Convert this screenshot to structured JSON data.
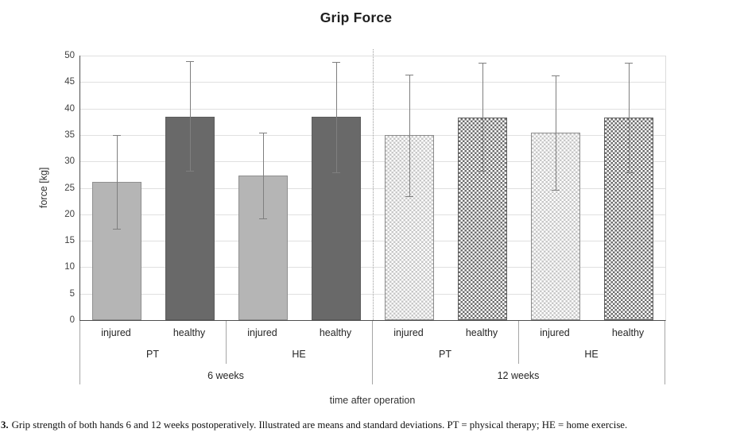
{
  "chart_data": {
    "type": "bar",
    "title": "Grip Force",
    "xlabel": "time after operation",
    "ylabel": "force [kg]",
    "ylim": [
      0,
      50
    ],
    "ytick_step": 5,
    "grid": true,
    "legend_position": "none",
    "bars": [
      {
        "week": "6 weeks",
        "therapy": "PT",
        "hand": "injured",
        "mean": 26.2,
        "err_low": 17.3,
        "err_high": 35.0,
        "style": "solid-light"
      },
      {
        "week": "6 weeks",
        "therapy": "PT",
        "hand": "healthy",
        "mean": 38.5,
        "err_low": 28.2,
        "err_high": 48.9,
        "style": "solid-dark"
      },
      {
        "week": "6 weeks",
        "therapy": "HE",
        "hand": "injured",
        "mean": 27.3,
        "err_low": 19.2,
        "err_high": 35.5,
        "style": "solid-light"
      },
      {
        "week": "6 weeks",
        "therapy": "HE",
        "hand": "healthy",
        "mean": 38.5,
        "err_low": 27.9,
        "err_high": 48.8,
        "style": "solid-dark"
      },
      {
        "week": "12 weeks",
        "therapy": "PT",
        "hand": "injured",
        "mean": 35.0,
        "err_low": 23.4,
        "err_high": 46.4,
        "style": "checker-light"
      },
      {
        "week": "12 weeks",
        "therapy": "PT",
        "hand": "healthy",
        "mean": 38.3,
        "err_low": 28.2,
        "err_high": 48.7,
        "style": "checker-dark"
      },
      {
        "week": "12 weeks",
        "therapy": "HE",
        "hand": "injured",
        "mean": 35.4,
        "err_low": 24.6,
        "err_high": 46.2,
        "style": "checker-light"
      },
      {
        "week": "12 weeks",
        "therapy": "HE",
        "hand": "healthy",
        "mean": 38.3,
        "err_low": 28.0,
        "err_high": 48.6,
        "style": "checker-dark"
      }
    ],
    "therapy_groups": [
      "PT",
      "HE",
      "PT",
      "HE"
    ],
    "week_groups": [
      "6 weeks",
      "12 weeks"
    ]
  },
  "colors": {
    "bar_solid_light": "#b5b5b5",
    "bar_solid_dark": "#696969",
    "bar_checker_light": "#c8c8c8",
    "bar_checker_dark": "#6e6e6e",
    "bar_border": "#8c8c8c",
    "gridline": "#e0e0e0",
    "axis_line": "#4f4f4f",
    "error_bar": "#7f7f7f",
    "separator": "#a6a6a6"
  },
  "caption": {
    "prefix": "3.",
    "text": "Grip strength of both hands 6 and 12 weeks postoperatively. Illustrated are means and standard deviations. PT = physical therapy; HE = home exercise."
  }
}
